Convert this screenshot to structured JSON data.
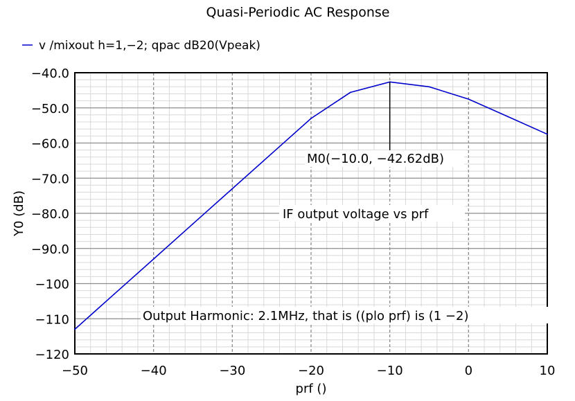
{
  "chart_data": {
    "type": "line",
    "title": "Quasi-Periodic AC Response",
    "xlabel": "prf ()",
    "ylabel": "Y0 (dB)",
    "xlim": [
      -50,
      10
    ],
    "ylim": [
      -120,
      -40
    ],
    "x_ticks": [
      -50,
      -40,
      -30,
      -20,
      -10,
      0,
      10
    ],
    "x_tick_labels": [
      "−50",
      "−40",
      "−30",
      "−20",
      "−10",
      "0",
      "10"
    ],
    "y_ticks": [
      -40,
      -50,
      -60,
      -70,
      -80,
      -90,
      -100,
      -110,
      -120
    ],
    "y_tick_labels": [
      "−40.0",
      "−50.0",
      "−60.0",
      "−70.0",
      "−80.0",
      "−90.0",
      "−100",
      "−110",
      "−120"
    ],
    "grid": true,
    "legend_position": "top-left",
    "series": [
      {
        "name": "v /mixout h=1,−2; qpac dB20(Vpeak)",
        "color": "#0000cc",
        "x": [
          -50,
          -45,
          -40,
          -35,
          -30,
          -25,
          -20,
          -15,
          -10,
          -5,
          0,
          5,
          10
        ],
        "y": [
          -113.0,
          -103.0,
          -93.0,
          -83.0,
          -73.0,
          -63.0,
          -53.0,
          -45.6,
          -42.62,
          -44.0,
          -47.5,
          -52.5,
          -57.5
        ]
      }
    ],
    "marker": {
      "label": "M0(−10.0, −42.62dB)",
      "x": -10.0,
      "y": -42.62
    },
    "annotations": [
      "IF output voltage vs prf",
      "Output Harmonic: 2.1MHz, that is ((plo  prf) is (1  −2)"
    ]
  }
}
